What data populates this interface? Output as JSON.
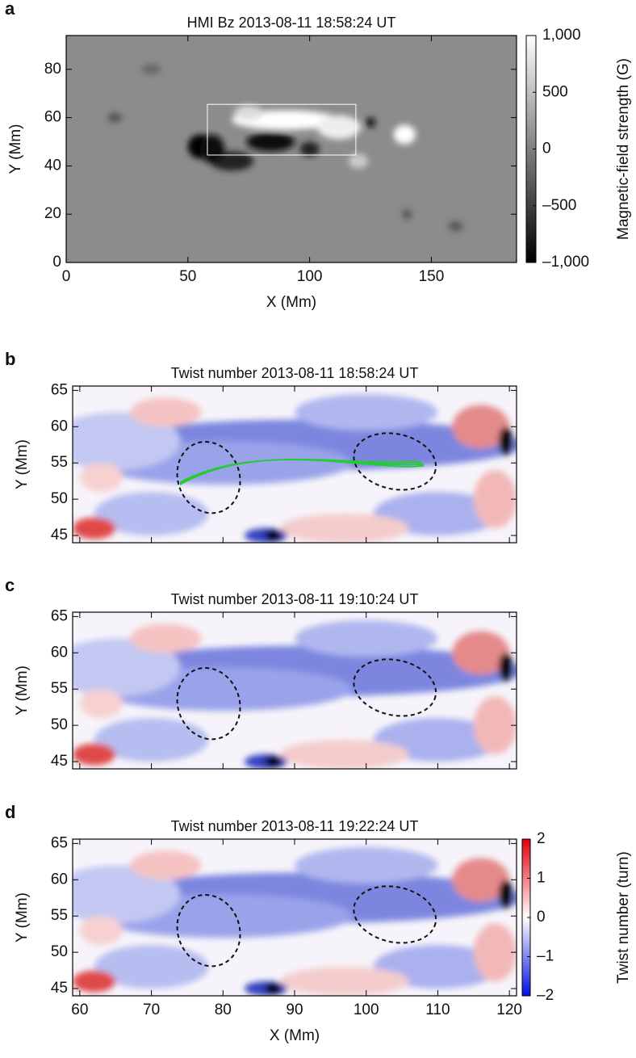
{
  "chart_data": [
    {
      "type": "image",
      "panel": "a",
      "title": "HMI Bz 2013-08-11 18:58:24 UT",
      "colormap": "gray",
      "x_label": "X (Mm)",
      "y_label": "Y (Mm)",
      "xlim": [
        0,
        185
      ],
      "ylim": [
        0,
        94
      ],
      "xticks": [
        0,
        50,
        100,
        150
      ],
      "yticks": [
        0,
        20,
        40,
        60,
        80
      ],
      "colorbar": {
        "label": "Magnetic-field strength (G)",
        "lim": [
          -1000,
          1000
        ],
        "ticks": [
          {
            "value": 1000,
            "label": "1,000"
          },
          500,
          0,
          {
            "value": -500,
            "label": "–500"
          },
          {
            "value": -1000,
            "label": "–1,000"
          }
        ]
      }
    },
    {
      "type": "image",
      "panel": "b",
      "title": "Twist number 2013-08-11 18:58:24 UT",
      "colormap": "bwr",
      "y_label": "Y (Mm)",
      "xlim": [
        59,
        121
      ],
      "ylim": [
        44,
        65.6
      ],
      "xticks": [
        60,
        70,
        80,
        90,
        100,
        110,
        120
      ],
      "show_xtick_labels": false,
      "yticks": [
        45,
        50,
        55,
        60,
        65
      ],
      "field_lines": true
    },
    {
      "type": "image",
      "panel": "c",
      "title": "Twist number 2013-08-11 19:10:24 UT",
      "colormap": "bwr",
      "y_label": "Y (Mm)",
      "xlim": [
        59,
        121
      ],
      "ylim": [
        44,
        65.6
      ],
      "xticks": [
        60,
        70,
        80,
        90,
        100,
        110,
        120
      ],
      "show_xtick_labels": false,
      "yticks": [
        45,
        50,
        55,
        60,
        65
      ]
    },
    {
      "type": "image",
      "panel": "d",
      "title": "Twist number 2013-08-11 19:22:24 UT",
      "colormap": "bwr",
      "x_label": "X (Mm)",
      "y_label": "Y (Mm)",
      "xlim": [
        59,
        121
      ],
      "ylim": [
        44,
        65.6
      ],
      "xticks": [
        60,
        70,
        80,
        90,
        100,
        110,
        120
      ],
      "yticks": [
        45,
        50,
        55,
        60,
        65
      ],
      "colorbar": {
        "label": "Twist number (turn)",
        "lim": [
          -2,
          2
        ],
        "ticks": [
          2,
          1,
          0,
          {
            "value": -1,
            "label": "–1"
          },
          {
            "value": -2,
            "label": "–2"
          }
        ]
      }
    }
  ]
}
